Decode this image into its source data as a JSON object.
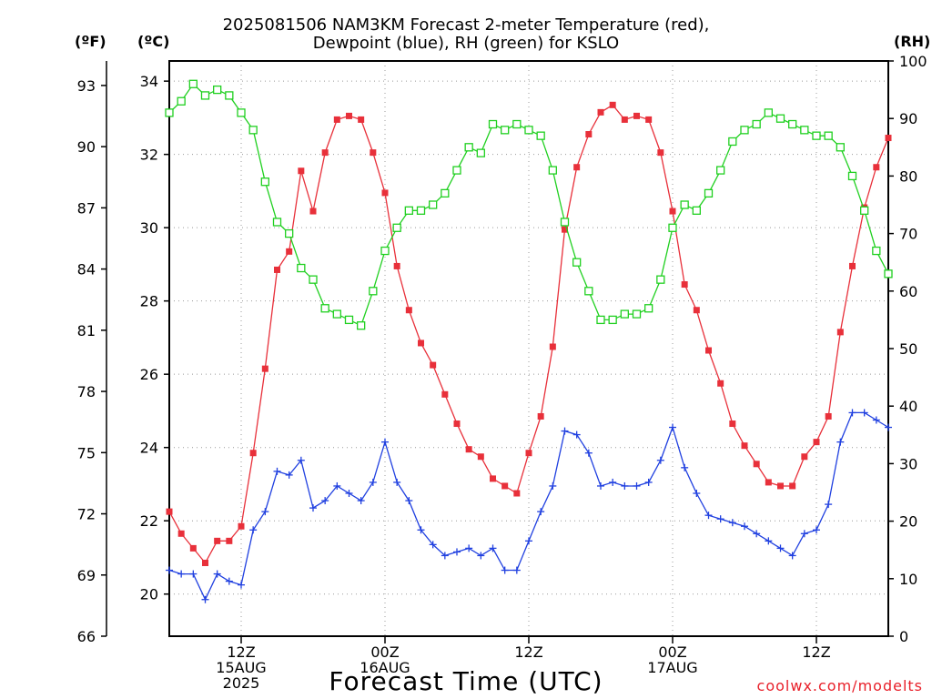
{
  "title_line1": "2025081506 NAM3KM Forecast 2-meter Temperature (red),",
  "title_line2": "Dewpoint (blue), RH (green) for KSLO",
  "unit_f": "(ºF)",
  "unit_c": "(ºC)",
  "unit_rh": "(RH)",
  "xlabel": "Forecast Time (UTC)",
  "credit": "coolwx.com/modelts",
  "colors": {
    "temperature": "#e8303a",
    "dewpoint": "#2040e0",
    "rh": "#20d020",
    "grid": "#999999"
  },
  "chart_data": {
    "type": "line",
    "x_unit": "forecast hour from 2025-08-15 06Z",
    "x_range": [
      0,
      60
    ],
    "x_ticks": [
      {
        "x": 6,
        "labels": [
          "12Z",
          "15AUG",
          "2025"
        ]
      },
      {
        "x": 18,
        "labels": [
          "00Z",
          "16AUG"
        ]
      },
      {
        "x": 30,
        "labels": [
          "12Z"
        ]
      },
      {
        "x": 42,
        "labels": [
          "00Z",
          "17AUG"
        ]
      },
      {
        "x": 54,
        "labels": [
          "12Z"
        ]
      }
    ],
    "y_left_c": {
      "range": [
        18.85,
        34.55
      ],
      "ticks": [
        20,
        22,
        24,
        26,
        28,
        30,
        32,
        34
      ]
    },
    "y_left_f": {
      "range": [
        66,
        94.2
      ],
      "ticks": [
        66,
        69,
        72,
        75,
        78,
        81,
        84,
        87,
        90,
        93
      ]
    },
    "y_right_rh": {
      "range": [
        0,
        100
      ],
      "ticks": [
        0,
        10,
        20,
        30,
        40,
        50,
        60,
        70,
        80,
        90,
        100
      ]
    },
    "grid": true,
    "series": [
      {
        "name": "Temperature",
        "axis": "c",
        "marker": "square-filled",
        "color": "#e8303a",
        "x": [
          0,
          1,
          2,
          3,
          4,
          5,
          6,
          7,
          8,
          9,
          10,
          11,
          12,
          13,
          14,
          15,
          16,
          17,
          18,
          19,
          20,
          21,
          22,
          23,
          24,
          25,
          26,
          27,
          28,
          29,
          30,
          31,
          32,
          33,
          34,
          35,
          36,
          37,
          38,
          39,
          40,
          41,
          42,
          43,
          44,
          45,
          46,
          47,
          48,
          49,
          50,
          51,
          52,
          53,
          54,
          55,
          56,
          57,
          58,
          59,
          60
        ],
        "values": [
          22.25,
          21.65,
          21.25,
          20.85,
          21.45,
          21.45,
          21.85,
          23.85,
          26.15,
          28.85,
          29.35,
          31.55,
          30.45,
          32.05,
          32.95,
          33.05,
          32.95,
          32.05,
          30.95,
          28.95,
          27.75,
          26.85,
          26.25,
          25.45,
          24.65,
          23.95,
          23.75,
          23.15,
          22.95,
          22.75,
          23.85,
          24.85,
          26.75,
          29.95,
          31.65,
          32.55,
          33.15,
          33.35,
          32.95,
          33.05,
          32.95,
          32.05,
          30.45,
          28.45,
          27.75,
          26.65,
          25.75,
          24.65,
          24.05,
          23.55,
          23.05,
          22.95,
          22.95,
          23.75,
          24.15,
          24.85,
          27.15,
          28.95,
          30.55,
          31.65,
          32.45
        ]
      },
      {
        "name": "Dewpoint",
        "axis": "c",
        "marker": "plus",
        "color": "#2040e0",
        "x": [
          0,
          1,
          2,
          3,
          4,
          5,
          6,
          7,
          8,
          9,
          10,
          11,
          12,
          13,
          14,
          15,
          16,
          17,
          18,
          19,
          20,
          21,
          22,
          23,
          24,
          25,
          26,
          27,
          28,
          29,
          30,
          31,
          32,
          33,
          34,
          35,
          36,
          37,
          38,
          39,
          40,
          41,
          42,
          43,
          44,
          45,
          46,
          47,
          48,
          49,
          50,
          51,
          52,
          53,
          54,
          55,
          56,
          57,
          58,
          59,
          60
        ],
        "values": [
          20.65,
          20.55,
          20.55,
          19.85,
          20.55,
          20.35,
          20.25,
          21.75,
          22.25,
          23.35,
          23.25,
          23.65,
          22.35,
          22.55,
          22.95,
          22.75,
          22.55,
          23.05,
          24.15,
          23.05,
          22.55,
          21.75,
          21.35,
          21.05,
          21.15,
          21.25,
          21.05,
          21.25,
          20.65,
          20.65,
          21.45,
          22.25,
          22.95,
          24.45,
          24.35,
          23.85,
          22.95,
          23.05,
          22.95,
          22.95,
          23.05,
          23.65,
          24.55,
          23.45,
          22.75,
          22.15,
          22.05,
          21.95,
          21.85,
          21.65,
          21.45,
          21.25,
          21.05,
          21.65,
          21.75,
          22.45,
          24.15,
          24.95,
          24.95,
          24.75,
          24.55
        ]
      },
      {
        "name": "RH",
        "axis": "rh",
        "marker": "square-open",
        "color": "#20d020",
        "x": [
          0,
          1,
          2,
          3,
          4,
          5,
          6,
          7,
          8,
          9,
          10,
          11,
          12,
          13,
          14,
          15,
          16,
          17,
          18,
          19,
          20,
          21,
          22,
          23,
          24,
          25,
          26,
          27,
          28,
          29,
          30,
          31,
          32,
          33,
          34,
          35,
          36,
          37,
          38,
          39,
          40,
          41,
          42,
          43,
          44,
          45,
          46,
          47,
          48,
          49,
          50,
          51,
          52,
          53,
          54,
          55,
          56,
          57,
          58,
          59,
          60
        ],
        "values": [
          91,
          93,
          96,
          94,
          95,
          94,
          91,
          88,
          79,
          72,
          70,
          64,
          62,
          57,
          56,
          55,
          54,
          60,
          67,
          71,
          74,
          74,
          75,
          77,
          81,
          85,
          84,
          89,
          88,
          89,
          88,
          87,
          81,
          72,
          65,
          60,
          55,
          55,
          56,
          56,
          57,
          62,
          71,
          75,
          74,
          77,
          81,
          86,
          88,
          89,
          91,
          90,
          89,
          88,
          87,
          87,
          85,
          80,
          74,
          67,
          63
        ]
      }
    ]
  }
}
